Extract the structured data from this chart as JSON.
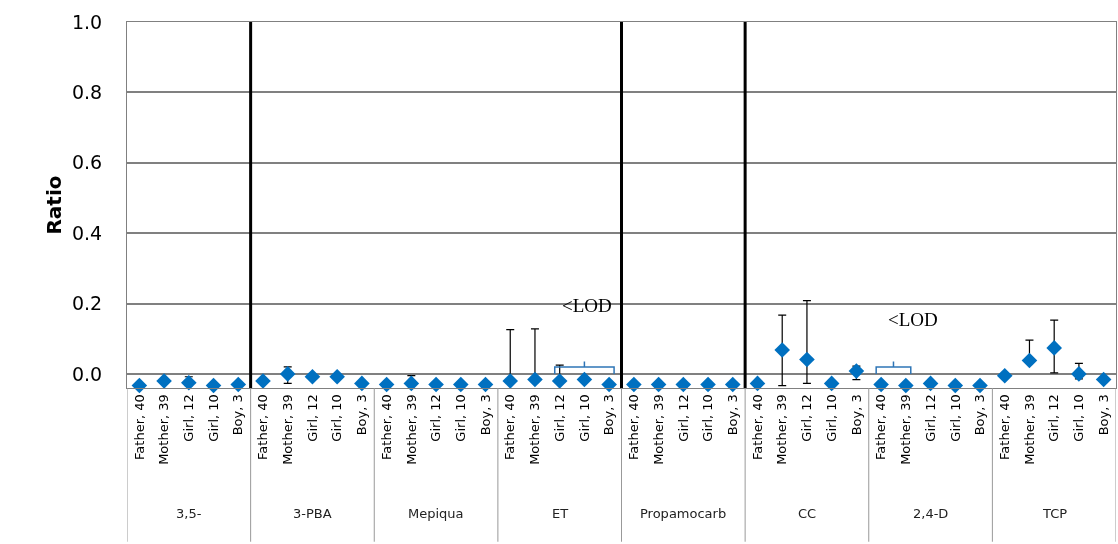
{
  "chart_data": {
    "type": "scatter",
    "ylabel": "Ratio",
    "categories": [
      "Father, 40",
      "Mother, 39",
      "Girl, 12",
      "Girl, 10",
      "Boy, 3",
      "Father, 40",
      "Mother, 39",
      "Girl, 12",
      "Girl, 10",
      "Boy, 3",
      "Father, 40",
      "Mother, 39",
      "Girl, 12",
      "Girl, 10",
      "Boy, 3",
      "Father, 40",
      "Mother, 39",
      "Girl, 12",
      "Girl, 10",
      "Boy, 3",
      "Father, 40",
      "Mother, 39",
      "Girl, 12",
      "Girl, 10",
      "Boy, 3",
      "Father, 40",
      "Mother, 39",
      "Girl, 12",
      "Girl, 10",
      "Boy, 3",
      "Father, 40",
      "Mother, 39",
      "Girl, 12",
      "Girl, 10",
      "Boy, 3",
      "Father, 40",
      "Mother, 39",
      "Girl, 12",
      "Girl, 10",
      "Boy, 3"
    ],
    "series": [
      {
        "color": "#0070c0",
        "values": [
          -0.033,
          -0.02,
          -0.025,
          -0.033,
          -0.03,
          -0.02,
          0.0,
          -0.008,
          -0.008,
          -0.027,
          -0.03,
          -0.027,
          -0.03,
          -0.03,
          -0.03,
          -0.02,
          -0.016,
          -0.02,
          -0.016,
          -0.03,
          -0.03,
          -0.03,
          -0.03,
          -0.03,
          -0.03,
          -0.027,
          0.068,
          0.041,
          -0.027,
          0.008,
          -0.03,
          -0.033,
          -0.027,
          -0.033,
          -0.033,
          -0.005,
          0.038,
          0.074,
          0.0,
          -0.016
        ],
        "errors": [
          null,
          null,
          [
            -0.033,
            -0.008
          ],
          null,
          null,
          null,
          [
            -0.027,
            0.02
          ],
          null,
          null,
          null,
          null,
          [
            -0.03,
            -0.005
          ],
          null,
          null,
          null,
          [
            -0.02,
            0.126
          ],
          [
            -0.016,
            0.128
          ],
          [
            -0.02,
            0.025
          ],
          null,
          null,
          null,
          null,
          null,
          null,
          null,
          null,
          [
            -0.033,
            0.167
          ],
          [
            -0.027,
            0.208
          ],
          null,
          [
            -0.016,
            0.022
          ],
          null,
          null,
          null,
          null,
          null,
          null,
          [
            0.038,
            0.096
          ],
          [
            0.003,
            0.153
          ],
          [
            -0.014,
            0.03
          ],
          null
        ]
      }
    ],
    "ylim": [
      -0.04,
      1.0
    ],
    "yticks": [
      {
        "value": 0,
        "label": "0.0"
      },
      0.2,
      0.4,
      0.6,
      0.8,
      {
        "value": 1,
        "label": "1.0"
      }
    ],
    "grid": "y",
    "marker": "diamond",
    "annotations": [
      "3,5-",
      "3-PBA",
      "Mepiqua",
      "ET",
      "Propamocarb",
      "CC",
      "2,4-D",
      "TCP",
      "<LOD",
      "<LOD"
    ]
  }
}
